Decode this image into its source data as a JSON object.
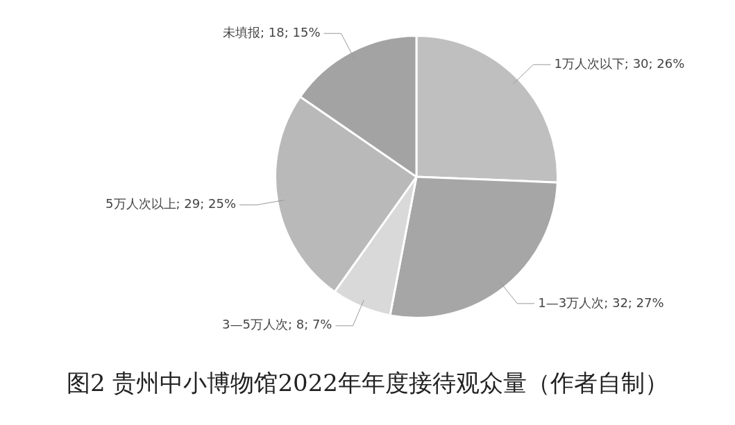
{
  "chart_data": {
    "type": "pie",
    "title": "图2 贵州中小博物馆2022年年度接待观众量（作者自制）",
    "categories": [
      "1万人次以下",
      "1—3万人次",
      "3—5万人次",
      "5万人次以上",
      "未填报"
    ],
    "values": [
      30,
      32,
      8,
      29,
      18
    ],
    "value_labels": [
      "30; 26%",
      "32; 27%",
      "8; 7%",
      "29; 25%",
      "18; 15%"
    ],
    "colors": [
      "#bfbfbf",
      "#a6a6a6",
      "#d9d9d9",
      "#b9b9b9",
      "#a3a3a3"
    ],
    "legend": false
  }
}
